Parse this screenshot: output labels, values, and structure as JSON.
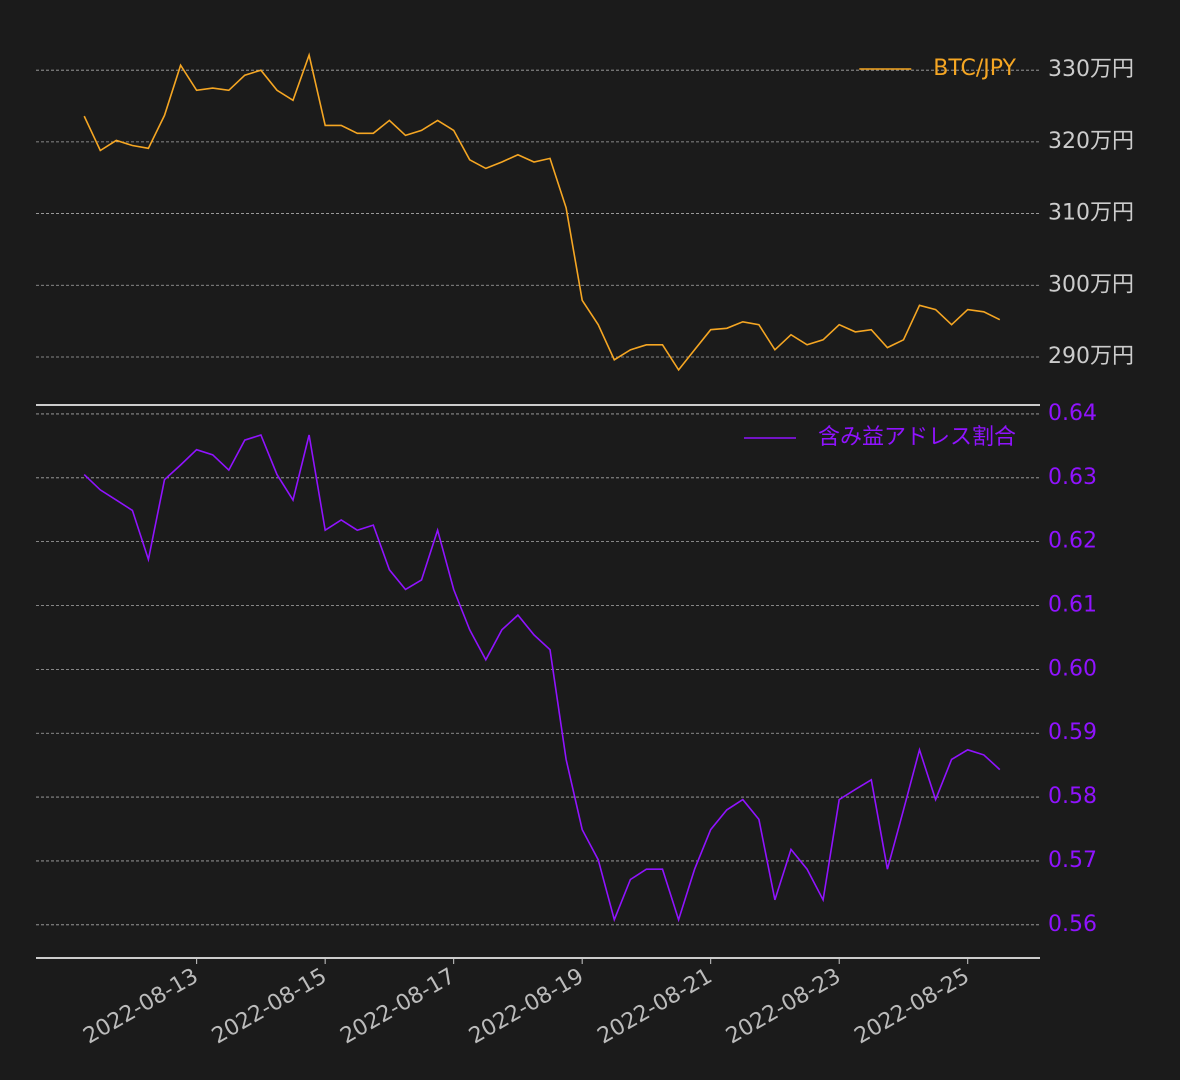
{
  "chart_data": [
    {
      "type": "line",
      "legend": "upper right",
      "grid": true,
      "x": [
        "2022-08-11T06:00",
        "2022-08-11T12:00",
        "2022-08-11T18:00",
        "2022-08-12T00:00",
        "2022-08-12T06:00",
        "2022-08-12T12:00",
        "2022-08-12T18:00",
        "2022-08-13T00:00",
        "2022-08-13T06:00",
        "2022-08-13T12:00",
        "2022-08-13T18:00",
        "2022-08-14T00:00",
        "2022-08-14T06:00",
        "2022-08-14T12:00",
        "2022-08-14T18:00",
        "2022-08-15T00:00",
        "2022-08-15T06:00",
        "2022-08-15T12:00",
        "2022-08-15T18:00",
        "2022-08-16T00:00",
        "2022-08-16T06:00",
        "2022-08-16T12:00",
        "2022-08-16T18:00",
        "2022-08-17T00:00",
        "2022-08-17T06:00",
        "2022-08-17T12:00",
        "2022-08-17T18:00",
        "2022-08-18T00:00",
        "2022-08-18T06:00",
        "2022-08-18T12:00",
        "2022-08-18T18:00",
        "2022-08-19T00:00",
        "2022-08-19T06:00",
        "2022-08-19T12:00",
        "2022-08-19T18:00",
        "2022-08-20T00:00",
        "2022-08-20T06:00",
        "2022-08-20T12:00",
        "2022-08-20T18:00",
        "2022-08-21T00:00",
        "2022-08-21T06:00",
        "2022-08-21T12:00",
        "2022-08-21T18:00",
        "2022-08-22T00:00",
        "2022-08-22T06:00",
        "2022-08-22T12:00",
        "2022-08-22T18:00",
        "2022-08-23T00:00",
        "2022-08-23T06:00",
        "2022-08-23T12:00",
        "2022-08-23T18:00",
        "2022-08-24T00:00",
        "2022-08-24T06:00",
        "2022-08-24T12:00",
        "2022-08-24T18:00",
        "2022-08-25T00:00",
        "2022-08-25T06:00",
        "2022-08-25T12:00"
      ],
      "xlim": [
        "2022-08-10T12:00",
        "2022-08-26T03:00"
      ],
      "series": [
        {
          "name": "BTC/JPY",
          "color": "#f5a623",
          "values": [
            3236000,
            3188000,
            3202000,
            3195000,
            3191000,
            3237000,
            3307000,
            3272000,
            3275000,
            3272000,
            3293000,
            3300000,
            3272000,
            3258000,
            3321000,
            3223000,
            3223000,
            3212000,
            3212000,
            3230000,
            3209000,
            3216000,
            3230000,
            3216000,
            3175000,
            3163000,
            3172000,
            3182000,
            3172000,
            3177000,
            3108000,
            2979000,
            2945000,
            2896000,
            2910000,
            2917000,
            2917000,
            2882000,
            2910000,
            2938000,
            2940000,
            2949000,
            2945000,
            2910000,
            2931000,
            2917000,
            2924000,
            2945000,
            2935000,
            2938000,
            2913000,
            2924000,
            2972000,
            2966000,
            2945000,
            2966000,
            2963000,
            2952000
          ]
        }
      ],
      "ylim": [
        2833000,
        3370000
      ],
      "yticks": [
        {
          "value": 2900000,
          "label": "290万円"
        },
        {
          "value": 3000000,
          "label": "300万円"
        },
        {
          "value": 3100000,
          "label": "310万円"
        },
        {
          "value": 3200000,
          "label": "320万円"
        },
        {
          "value": 3300000,
          "label": "330万円"
        }
      ]
    },
    {
      "type": "line",
      "legend": "upper right",
      "grid": true,
      "x": [
        "2022-08-11T06:00",
        "2022-08-11T12:00",
        "2022-08-11T18:00",
        "2022-08-12T00:00",
        "2022-08-12T06:00",
        "2022-08-12T12:00",
        "2022-08-12T18:00",
        "2022-08-13T00:00",
        "2022-08-13T06:00",
        "2022-08-13T12:00",
        "2022-08-13T18:00",
        "2022-08-14T00:00",
        "2022-08-14T06:00",
        "2022-08-14T12:00",
        "2022-08-14T18:00",
        "2022-08-15T00:00",
        "2022-08-15T06:00",
        "2022-08-15T12:00",
        "2022-08-15T18:00",
        "2022-08-16T00:00",
        "2022-08-16T06:00",
        "2022-08-16T12:00",
        "2022-08-16T18:00",
        "2022-08-17T00:00",
        "2022-08-17T06:00",
        "2022-08-17T12:00",
        "2022-08-17T18:00",
        "2022-08-18T00:00",
        "2022-08-18T06:00",
        "2022-08-18T12:00",
        "2022-08-18T18:00",
        "2022-08-19T00:00",
        "2022-08-19T06:00",
        "2022-08-19T12:00",
        "2022-08-19T18:00",
        "2022-08-20T00:00",
        "2022-08-20T06:00",
        "2022-08-20T12:00",
        "2022-08-20T18:00",
        "2022-08-21T00:00",
        "2022-08-21T06:00",
        "2022-08-21T12:00",
        "2022-08-21T18:00",
        "2022-08-22T00:00",
        "2022-08-22T06:00",
        "2022-08-22T12:00",
        "2022-08-22T18:00",
        "2022-08-23T00:00",
        "2022-08-23T06:00",
        "2022-08-23T12:00",
        "2022-08-23T18:00",
        "2022-08-24T00:00",
        "2022-08-24T06:00",
        "2022-08-24T12:00",
        "2022-08-24T18:00",
        "2022-08-25T00:00",
        "2022-08-25T06:00",
        "2022-08-25T12:00"
      ],
      "xlim": [
        "2022-08-10T12:00",
        "2022-08-26T03:00"
      ],
      "xticks": [
        "2022-08-13",
        "2022-08-15",
        "2022-08-17",
        "2022-08-19",
        "2022-08-21",
        "2022-08-23",
        "2022-08-25"
      ],
      "series": [
        {
          "name": "含み益アドレス割合",
          "color": "#9013fe",
          "values": [
            0.6305,
            0.6281,
            0.6265,
            0.6249,
            0.6172,
            0.6297,
            0.632,
            0.6344,
            0.6336,
            0.6312,
            0.6359,
            0.6367,
            0.6305,
            0.6265,
            0.6367,
            0.6218,
            0.6234,
            0.6218,
            0.6226,
            0.6156,
            0.6125,
            0.614,
            0.6218,
            0.6125,
            0.6062,
            0.6015,
            0.6062,
            0.6085,
            0.6054,
            0.6031,
            0.5859,
            0.5749,
            0.5702,
            0.5608,
            0.5671,
            0.5687,
            0.5687,
            0.5608,
            0.5687,
            0.5749,
            0.578,
            0.5796,
            0.5765,
            0.5639,
            0.5718,
            0.5687,
            0.5639,
            0.5796,
            0.5812,
            0.5827,
            0.5687,
            0.578,
            0.5874,
            0.5796,
            0.5859,
            0.5874,
            0.5866,
            0.5843
          ]
        }
      ],
      "ylim": [
        0.5548,
        0.6414
      ],
      "yticks": [
        0.56,
        0.57,
        0.58,
        0.59,
        {
          "value": 0.6,
          "label": "0.60"
        },
        0.61,
        0.62,
        0.63,
        0.64
      ]
    }
  ]
}
